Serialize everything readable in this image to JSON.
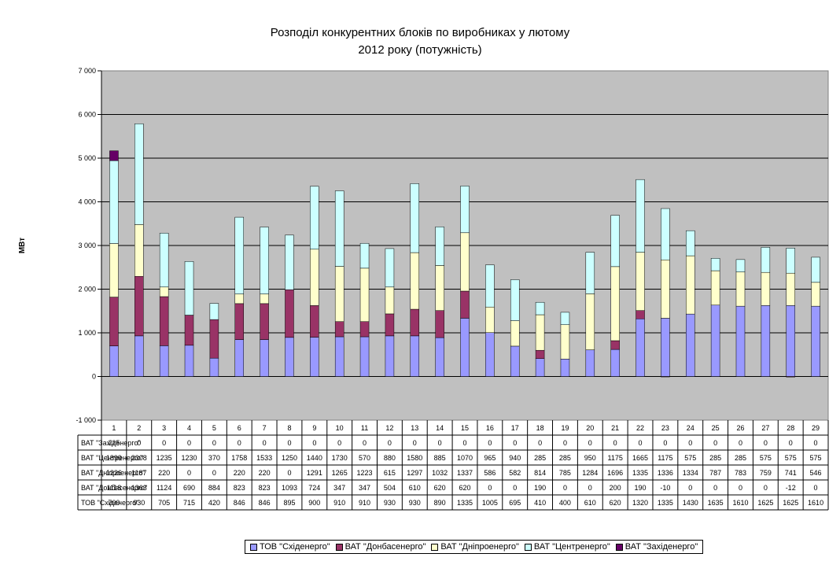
{
  "chart_data": {
    "type": "bar",
    "stacked": true,
    "title": "Розподіл конкурентних блоків по виробниках у лютому",
    "title_line2": "2012 року (потужність)",
    "ylabel": "МВт",
    "xlabel": "",
    "ylim": [
      -1000,
      7000
    ],
    "yticks": [
      "-1 000",
      "0",
      "1 000",
      "2 000",
      "3 000",
      "4 000",
      "5 000",
      "6 000",
      "7 000"
    ],
    "ytick_values": [
      -1000,
      0,
      1000,
      2000,
      3000,
      4000,
      5000,
      6000,
      7000
    ],
    "grid": true,
    "plot_background": "#C0C0C0",
    "legend_position": "bottom",
    "categories": [
      "1",
      "2",
      "3",
      "4",
      "5",
      "6",
      "7",
      "8",
      "9",
      "10",
      "11",
      "12",
      "13",
      "14",
      "15",
      "16",
      "17",
      "18",
      "19",
      "20",
      "21",
      "22",
      "23",
      "24",
      "25",
      "26",
      "27",
      "28",
      "29"
    ],
    "series": [
      {
        "name": "ТОВ \"Східенерго\"",
        "color": "#9999FF",
        "values": [
          700,
          930,
          705,
          715,
          420,
          846,
          846,
          895,
          900,
          910,
          910,
          930,
          930,
          890,
          1335,
          1005,
          695,
          410,
          400,
          610,
          620,
          1320,
          1335,
          1430,
          1635,
          1610,
          1625,
          1625,
          1610
        ]
      },
      {
        "name": "ВАТ \"Донбасенерго\"",
        "color": "#993366",
        "values": [
          1118,
          1363,
          1124,
          690,
          884,
          823,
          823,
          1093,
          724,
          347,
          347,
          504,
          610,
          620,
          620,
          0,
          0,
          190,
          0,
          0,
          200,
          190,
          -10,
          0,
          0,
          0,
          0,
          -12,
          0
        ]
      },
      {
        "name": "ВАТ \"Дніпроенерго\"",
        "color": "#FFFFCC",
        "values": [
          1226,
          1187,
          220,
          0,
          0,
          220,
          220,
          0,
          1291,
          1265,
          1223,
          615,
          1297,
          1032,
          1337,
          586,
          582,
          814,
          785,
          1284,
          1696,
          1335,
          1336,
          1334,
          787,
          783,
          759,
          741,
          546
        ]
      },
      {
        "name": "ВАТ \"Центренерго\"",
        "color": "#CCFFFF",
        "values": [
          1899,
          2308,
          1235,
          1230,
          370,
          1758,
          1533,
          1250,
          1440,
          1730,
          570,
          880,
          1580,
          885,
          1070,
          965,
          940,
          285,
          285,
          950,
          1175,
          1665,
          1175,
          575,
          285,
          285,
          575,
          575,
          575
        ]
      },
      {
        "name": "ВАТ \"Західенерго\"",
        "color": "#660066",
        "values": [
          225,
          0,
          0,
          0,
          0,
          0,
          0,
          0,
          0,
          0,
          0,
          0,
          0,
          0,
          0,
          0,
          0,
          0,
          0,
          0,
          0,
          0,
          0,
          0,
          0,
          0,
          0,
          0,
          0
        ]
      }
    ]
  }
}
